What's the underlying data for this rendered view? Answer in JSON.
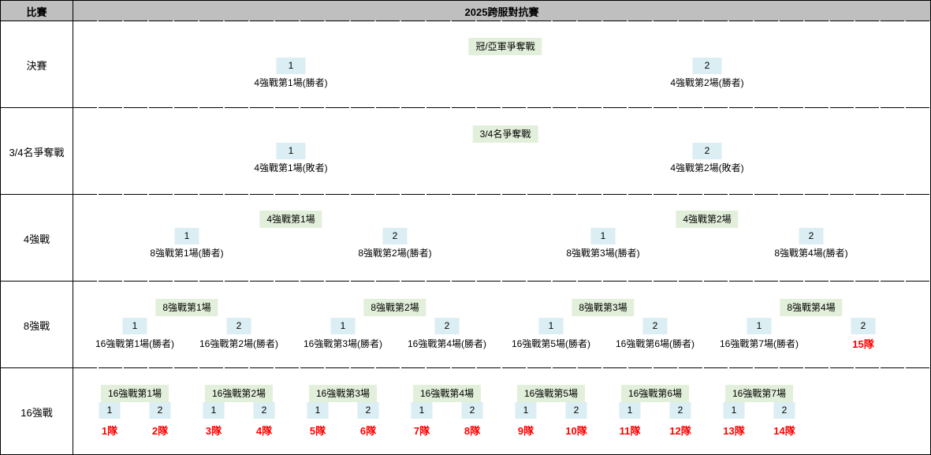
{
  "header": {
    "corner": "比賽",
    "title": "2025跨服對抗賽"
  },
  "colors": {
    "header_bg": "#BFBFBF",
    "slot_bg": "#DAEEF3",
    "banner_bg": "#E2EFDA",
    "team_color": "#FF0000",
    "border": "#000000"
  },
  "rounds": [
    {
      "name": "決賽",
      "matches": [
        {
          "title": "冠/亞軍爭奪戰",
          "slots": [
            {
              "num": "1",
              "source": "4強戰第1場(勝者)"
            },
            {
              "num": "2",
              "source": "4強戰第2場(勝者)"
            }
          ]
        }
      ]
    },
    {
      "name": "3/4名爭奪戰",
      "matches": [
        {
          "title": "3/4名爭奪戰",
          "slots": [
            {
              "num": "1",
              "source": "4強戰第1場(敗者)"
            },
            {
              "num": "2",
              "source": "4強戰第2場(敗者)"
            }
          ]
        }
      ]
    },
    {
      "name": "4強戰",
      "matches": [
        {
          "title": "4強戰第1場",
          "slots": [
            {
              "num": "1",
              "source": "8強戰第1場(勝者)"
            },
            {
              "num": "2",
              "source": "8強戰第2場(勝者)"
            }
          ]
        },
        {
          "title": "4強戰第2場",
          "slots": [
            {
              "num": "1",
              "source": "8強戰第3場(勝者)"
            },
            {
              "num": "2",
              "source": "8強戰第4場(勝者)"
            }
          ]
        }
      ]
    },
    {
      "name": "8強戰",
      "matches": [
        {
          "title": "8強戰第1場",
          "slots": [
            {
              "num": "1",
              "source": "16強戰第1場(勝者)"
            },
            {
              "num": "2",
              "source": "16強戰第2場(勝者)"
            }
          ]
        },
        {
          "title": "8強戰第2場",
          "slots": [
            {
              "num": "1",
              "source": "16強戰第3場(勝者)"
            },
            {
              "num": "2",
              "source": "16強戰第4場(勝者)"
            }
          ]
        },
        {
          "title": "8強戰第3場",
          "slots": [
            {
              "num": "1",
              "source": "16強戰第5場(勝者)"
            },
            {
              "num": "2",
              "source": "16強戰第6場(勝者)"
            }
          ]
        },
        {
          "title": "8強戰第4場",
          "slots": [
            {
              "num": "1",
              "source": "16強戰第7場(勝者)"
            },
            {
              "num": "2",
              "team": "15隊"
            }
          ]
        }
      ]
    },
    {
      "name": "16強戰",
      "matches": [
        {
          "title": "16強戰第1場",
          "slots": [
            {
              "num": "1",
              "team": "1隊"
            },
            {
              "num": "2",
              "team": "2隊"
            }
          ]
        },
        {
          "title": "16強戰第2場",
          "slots": [
            {
              "num": "1",
              "team": "3隊"
            },
            {
              "num": "2",
              "team": "4隊"
            }
          ]
        },
        {
          "title": "16強戰第3場",
          "slots": [
            {
              "num": "1",
              "team": "5隊"
            },
            {
              "num": "2",
              "team": "6隊"
            }
          ]
        },
        {
          "title": "16強戰第4場",
          "slots": [
            {
              "num": "1",
              "team": "7隊"
            },
            {
              "num": "2",
              "team": "8隊"
            }
          ]
        },
        {
          "title": "16強戰第5場",
          "slots": [
            {
              "num": "1",
              "team": "9隊"
            },
            {
              "num": "2",
              "team": "10隊"
            }
          ]
        },
        {
          "title": "16強戰第6場",
          "slots": [
            {
              "num": "1",
              "team": "11隊"
            },
            {
              "num": "2",
              "team": "12隊"
            }
          ]
        },
        {
          "title": "16強戰第7場",
          "slots": [
            {
              "num": "1",
              "team": "13隊"
            },
            {
              "num": "2",
              "team": "14隊"
            }
          ]
        }
      ]
    }
  ]
}
